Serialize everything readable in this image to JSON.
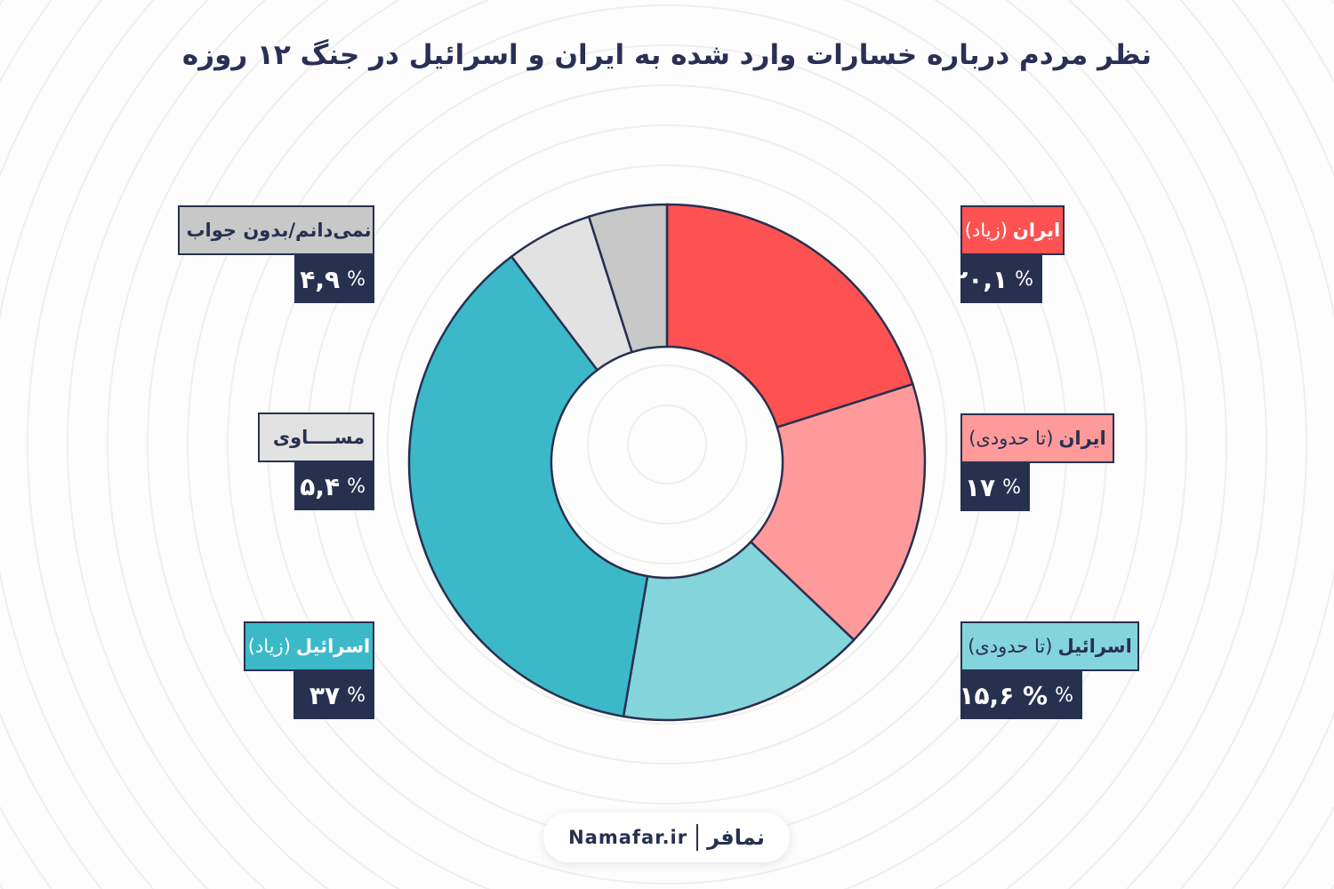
{
  "title": "نظر مردم درباره خسارات وارد شده به ایران و اسرائیل در جنگ ۱۲ روزه",
  "chart_data": {
    "type": "pie",
    "variant": "donut",
    "title": "نظر مردم درباره خسارات وارد شده به ایران و اسرائیل در جنگ ۱۲ روزه",
    "unit": "%",
    "slices": [
      {
        "subject": "ایران",
        "qualifier": "(زیاد)",
        "value": 20.1,
        "value_label": "۲۰,۱",
        "color": "#fe5252",
        "text_color": "#ffffff"
      },
      {
        "subject": "ایران",
        "qualifier": "(تا حدودی)",
        "value": 17,
        "value_label": "۱۷",
        "color": "#fe9a9a",
        "text_color": "#283050"
      },
      {
        "subject": "اسرائیل",
        "qualifier": "(تا حدودی)",
        "value": 15.6,
        "value_label": "۱۵,۶ %",
        "color": "#84d4db",
        "text_color": "#283050"
      },
      {
        "subject": "اسرائیل",
        "qualifier": "(زیاد)",
        "value": 37,
        "value_label": "۳۷",
        "color": "#3bb9c9",
        "text_color": "#ffffff"
      },
      {
        "subject": "مســــاوی",
        "qualifier": "",
        "value": 5.4,
        "value_label": "۵,۴",
        "color": "#e2e2e2",
        "text_color": "#283050"
      },
      {
        "subject": "نمی‌دانم/بدون جواب",
        "qualifier": "",
        "value": 4.9,
        "value_label": "۴,۹",
        "color": "#c8c8c8",
        "text_color": "#283050"
      }
    ],
    "start_angle": "top, clockwise"
  },
  "percent_sign": "%",
  "footer": {
    "logo": "نمافر",
    "site": "Namafar.ir"
  },
  "colors": {
    "navy": "#283050",
    "outline": "#283050"
  }
}
